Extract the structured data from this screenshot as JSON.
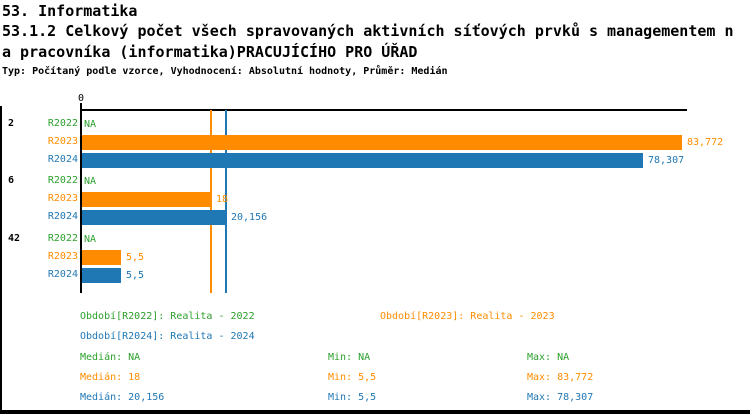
{
  "header": {
    "line1": "53. Informatika",
    "line2": "53.1.2 Celkový počet všech spravovaných aktivních síťových prvků s managementem n",
    "line3": "a pracovníka (informatika)PRACUJÍCÍHO PRO ÚŘAD",
    "meta_line": "Typ: Počítaný podle vzorce, Vyhodnocení: Absolutní hodnoty, Průměr: Medián"
  },
  "colors": {
    "r2022_green": "#2CA02C",
    "r2023_orange": "#FF8C00",
    "r2024_blue": "#1F77B4",
    "axis_black": "#000000"
  },
  "chart_data": {
    "type": "bar",
    "orientation": "horizontal",
    "x_axis": {
      "zero_label": "0",
      "xlim": [
        0,
        84.6
      ],
      "gridlines": false
    },
    "series_names": [
      "R2022",
      "R2023",
      "R2024"
    ],
    "groups": [
      {
        "label": "2",
        "bars": [
          {
            "series": "R2022",
            "value": null,
            "label": "NA"
          },
          {
            "series": "R2023",
            "value": 83.772,
            "label": "83,772"
          },
          {
            "series": "R2024",
            "value": 78.307,
            "label": "78,307"
          }
        ]
      },
      {
        "label": "6",
        "bars": [
          {
            "series": "R2022",
            "value": null,
            "label": "NA"
          },
          {
            "series": "R2023",
            "value": 18,
            "label": "18"
          },
          {
            "series": "R2024",
            "value": 20.156,
            "label": "20,156"
          }
        ]
      },
      {
        "label": "42",
        "bars": [
          {
            "series": "R2022",
            "value": null,
            "label": "NA"
          },
          {
            "series": "R2023",
            "value": 5.5,
            "label": "5,5"
          },
          {
            "series": "R2024",
            "value": 5.5,
            "label": "5,5"
          }
        ]
      }
    ],
    "reference_lines": [
      {
        "series": "R2023",
        "value": 18
      },
      {
        "series": "R2024",
        "value": 20.156
      }
    ]
  },
  "legend": {
    "r2022": "Období[R2022]: Realita - 2022",
    "r2023": "Období[R2023]: Realita - 2023",
    "r2024": "Období[R2024]: Realita - 2024"
  },
  "stats": {
    "r2022": {
      "median": "Medián: NA",
      "min": "Min: NA",
      "max": "Max: NA"
    },
    "r2023": {
      "median": "Medián: 18",
      "min": "Min: 5,5",
      "max": "Max: 83,772"
    },
    "r2024": {
      "median": "Medián: 20,156",
      "min": "Min: 5,5",
      "max": "Max: 78,307"
    }
  }
}
